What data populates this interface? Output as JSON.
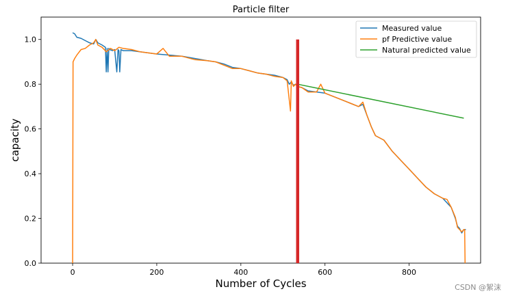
{
  "chart_data": {
    "type": "line",
    "title": "Particle filter",
    "xlabel": "Number of Cycles",
    "ylabel": "capacity",
    "xlim": [
      -75,
      970
    ],
    "ylim": [
      0.0,
      1.1
    ],
    "xticks": [
      0,
      200,
      400,
      600,
      800
    ],
    "yticks": [
      0.0,
      0.2,
      0.4,
      0.6,
      0.8,
      1.0
    ],
    "legend_position": "top-right",
    "prediction_start_cycle": 535,
    "prediction_marker_range": [
      0.0,
      1.0
    ],
    "prediction_marker_color": "#d62728",
    "series": [
      {
        "name": "Measured value",
        "color": "#1f77b4",
        "x": [
          0,
          5,
          10,
          20,
          30,
          40,
          50,
          55,
          60,
          70,
          78,
          80,
          82,
          84,
          86,
          88,
          95,
          100,
          105,
          108,
          110,
          112,
          115,
          120,
          140,
          160,
          180,
          200,
          230,
          260,
          290,
          320,
          340,
          360,
          380,
          400,
          420,
          440,
          460,
          480,
          500,
          510,
          515,
          520,
          525,
          530,
          535,
          545,
          560,
          580,
          600,
          620,
          640,
          660,
          680,
          690,
          700,
          710,
          720,
          740,
          760,
          780,
          800,
          820,
          840,
          860,
          880,
          900,
          910,
          915,
          920,
          925,
          930,
          935
        ],
        "values": [
          1.03,
          1.025,
          1.01,
          1.005,
          0.995,
          0.985,
          0.98,
          1.0,
          0.985,
          0.975,
          0.965,
          0.855,
          0.96,
          0.855,
          0.96,
          0.955,
          0.95,
          0.955,
          0.855,
          0.955,
          0.95,
          0.855,
          0.955,
          0.95,
          0.95,
          0.945,
          0.94,
          0.935,
          0.93,
          0.925,
          0.915,
          0.905,
          0.9,
          0.89,
          0.875,
          0.87,
          0.86,
          0.85,
          0.845,
          0.84,
          0.83,
          0.82,
          0.8,
          0.81,
          0.795,
          0.8,
          0.79,
          0.785,
          0.77,
          0.765,
          0.76,
          0.745,
          0.73,
          0.715,
          0.7,
          0.71,
          0.66,
          0.61,
          0.57,
          0.55,
          0.5,
          0.46,
          0.42,
          0.38,
          0.34,
          0.31,
          0.29,
          0.25,
          0.2,
          0.165,
          0.155,
          0.135,
          0.15,
          0.15
        ]
      },
      {
        "name": "pf Predictive value",
        "color": "#ff7f0e",
        "x": [
          0,
          1,
          5,
          10,
          20,
          30,
          40,
          50,
          55,
          60,
          70,
          80,
          90,
          100,
          110,
          120,
          140,
          160,
          180,
          200,
          215,
          230,
          260,
          290,
          320,
          340,
          360,
          380,
          400,
          420,
          440,
          460,
          480,
          500,
          510,
          515,
          518,
          520,
          525,
          530,
          535,
          545,
          560,
          580,
          590,
          600,
          620,
          640,
          660,
          680,
          690,
          700,
          710,
          720,
          740,
          760,
          780,
          800,
          820,
          840,
          860,
          880,
          890,
          900,
          910,
          915,
          920,
          925,
          930,
          932,
          933
        ],
        "values": [
          0.0,
          0.9,
          0.915,
          0.93,
          0.955,
          0.96,
          0.975,
          0.985,
          1.0,
          0.975,
          0.965,
          0.945,
          0.96,
          0.95,
          0.965,
          0.96,
          0.955,
          0.945,
          0.94,
          0.935,
          0.96,
          0.925,
          0.925,
          0.91,
          0.905,
          0.9,
          0.885,
          0.87,
          0.87,
          0.86,
          0.85,
          0.845,
          0.835,
          0.83,
          0.815,
          0.73,
          0.68,
          0.815,
          0.79,
          0.8,
          0.79,
          0.785,
          0.765,
          0.765,
          0.8,
          0.76,
          0.745,
          0.73,
          0.715,
          0.7,
          0.72,
          0.66,
          0.61,
          0.57,
          0.55,
          0.5,
          0.46,
          0.42,
          0.38,
          0.34,
          0.31,
          0.29,
          0.285,
          0.25,
          0.205,
          0.16,
          0.15,
          0.14,
          0.15,
          0.15,
          0.0
        ]
      },
      {
        "name": "Natural predicted value",
        "color": "#2ca02c",
        "x": [
          535,
          930
        ],
        "values": [
          0.8,
          0.648
        ]
      }
    ]
  },
  "watermark": "CSDN @絮沫"
}
